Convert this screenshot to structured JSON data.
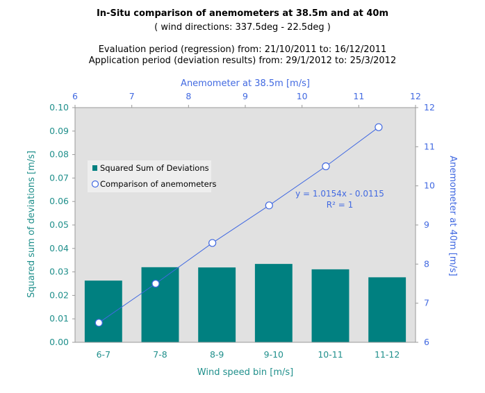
{
  "header": {
    "title": "In-Situ comparison of anemometers at 38.5m and at 40m",
    "subtitle": "( wind directions:  337.5deg  -  22.5deg )",
    "evaluation": "Evaluation period (regression)  from:  21/10/2011  to:  16/12/2011",
    "application": "Application period (deviation results) from:  29/1/2012  to: 25/3/2012"
  },
  "colors": {
    "bar": "#008080",
    "line": "#4169e1",
    "teal_text": "#1f8f8b",
    "blue_text": "#4169e1",
    "plot_bg": "#e1e1e1"
  },
  "chart_data": {
    "type": "bar",
    "categories": [
      "6-7",
      "7-8",
      "8-9",
      "9-10",
      "10-11",
      "11-12"
    ],
    "series": [
      {
        "name": "Squared Sum of Deviations",
        "type": "bar",
        "axis": "left",
        "values": [
          0.0263,
          0.032,
          0.0319,
          0.0334,
          0.0311,
          0.0277
        ]
      },
      {
        "name": "Comparison of anemometers",
        "type": "line",
        "axis": "top-right",
        "x": [
          6.42,
          7.42,
          8.42,
          9.42,
          10.42,
          11.35
        ],
        "y": [
          6.5,
          7.5,
          8.54,
          9.5,
          10.5,
          11.5
        ]
      }
    ],
    "xlabel": "Wind speed bin  [m/s]",
    "ylabel": "Squared sum  of deviations  [m/s]",
    "ylim": [
      0,
      0.1
    ],
    "yticks": [
      "0.00",
      "0.01",
      "0.02",
      "0.03",
      "0.04",
      "0.05",
      "0.06",
      "0.07",
      "0.08",
      "0.09",
      "0.10"
    ],
    "x2label": "Anemometer  at 38.5m  [m/s]",
    "x2lim": [
      6,
      12
    ],
    "x2ticks": [
      "6",
      "7",
      "8",
      "9",
      "10",
      "11",
      "12"
    ],
    "y2label": "Anemometer  at 40m  [m/s]",
    "y2lim": [
      6,
      12
    ],
    "y2ticks": [
      "6",
      "7",
      "8",
      "9",
      "10",
      "11",
      "12"
    ],
    "annotation": {
      "equation": "y = 1.0154x - 0.0115",
      "r2": "R² = 1"
    },
    "grid": false,
    "legend_placement": "upper-left"
  }
}
